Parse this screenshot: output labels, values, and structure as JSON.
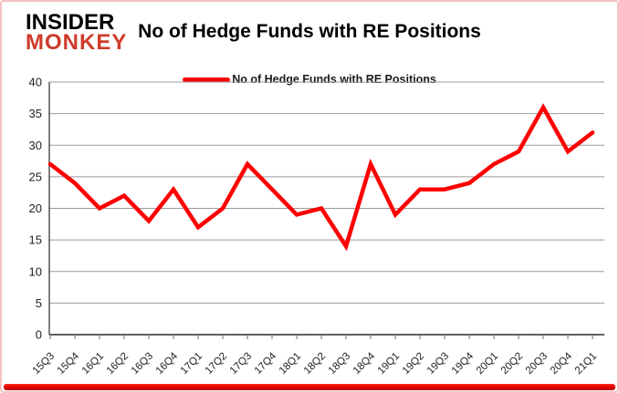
{
  "logo": {
    "line1": "INSIDER",
    "line2": "MONKEY"
  },
  "header": {
    "title": "No of Hedge Funds with RE Positions"
  },
  "legend": {
    "label": "No of Hedge Funds with RE Positions",
    "line_color": "#fe0000"
  },
  "chart_data": {
    "type": "line",
    "title": "No of Hedge Funds with RE Positions",
    "categories": [
      "15Q3",
      "15Q4",
      "16Q1",
      "16Q2",
      "16Q3",
      "16Q4",
      "17Q1",
      "17Q2",
      "17Q3",
      "17Q4",
      "18Q1",
      "18Q2",
      "18Q3",
      "18Q4",
      "19Q1",
      "19Q2",
      "19Q3",
      "19Q4",
      "20Q1",
      "20Q2",
      "20Q3",
      "20Q4",
      "21Q1"
    ],
    "series": [
      {
        "name": "No of Hedge Funds with RE Positions",
        "color": "#fe0000",
        "values": [
          27,
          24,
          20,
          22,
          18,
          23,
          17,
          20,
          27,
          23,
          19,
          20,
          14,
          27,
          19,
          23,
          23,
          24,
          27,
          29,
          36,
          29,
          32
        ]
      }
    ],
    "xlabel": "",
    "ylabel": "",
    "ylim": [
      0,
      40
    ],
    "ytick_step": 5,
    "y_ticks": [
      0,
      5,
      10,
      15,
      20,
      25,
      30,
      35,
      40
    ],
    "grid": true,
    "legend_position": "top-center",
    "colors": {
      "gridline": "#9b9b9b",
      "axis": "#2b2b2b",
      "tick": "#6e6e6e",
      "label": "#1f1f1f"
    }
  }
}
